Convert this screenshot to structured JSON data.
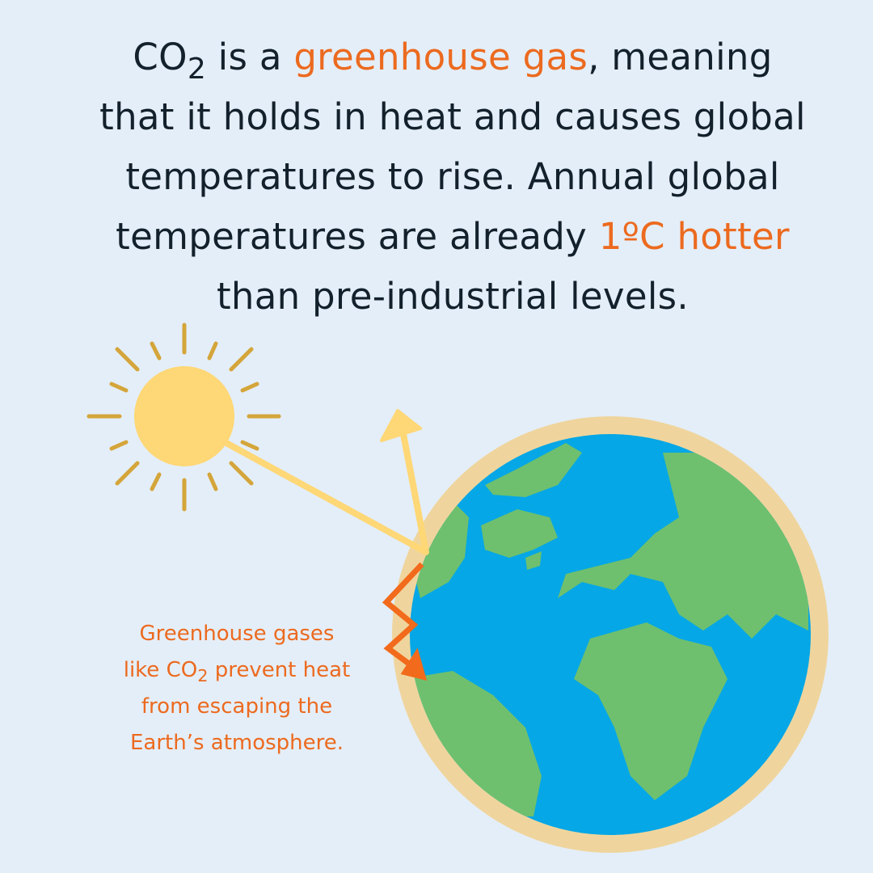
{
  "headline": {
    "lines": [
      [
        "CO",
        "2",
        " is a ",
        "greenhouse gas",
        ", meaning"
      ],
      [
        "that it holds in heat and causes global"
      ],
      [
        "temperatures to rise. Annual global"
      ],
      [
        "temperatures are already ",
        "1ºC hotter"
      ],
      [
        "than pre-industrial levels."
      ]
    ]
  },
  "caption": {
    "lines": [
      [
        "Greenhouse gases"
      ],
      [
        "like CO",
        "2",
        " prevent heat"
      ],
      [
        "from escaping the"
      ],
      [
        "Earth’s atmosphere."
      ]
    ]
  }
}
